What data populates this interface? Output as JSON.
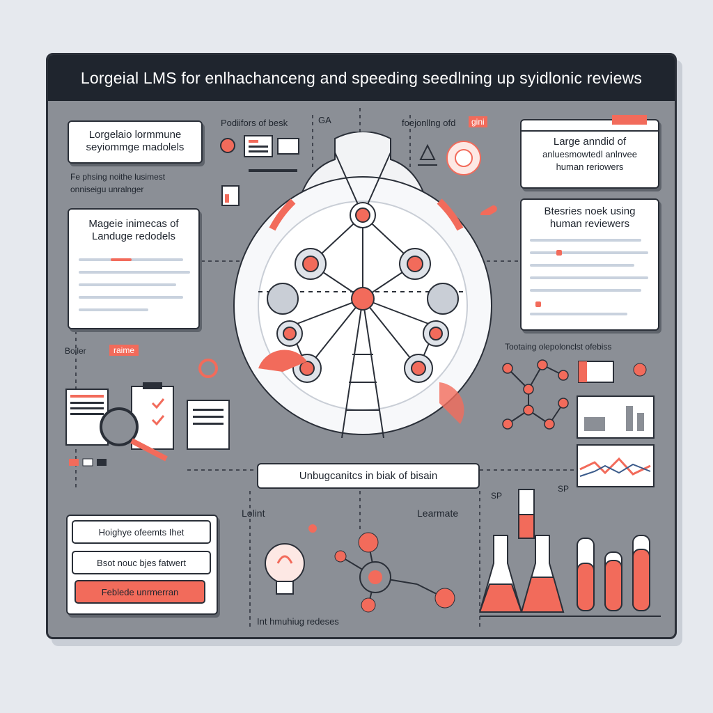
{
  "title": "Lorgeial LMS  for enlhachanceng and speeding seedlning up syidlonic reviews",
  "cards": {
    "top_left": {
      "line1": "Lorgelaio lormmune",
      "line2": "seyiommge madolels"
    },
    "middle_left": {
      "line1": "Mageie inimecas of",
      "line2": "Landuge redodels"
    },
    "top_right": {
      "line1": "Large anndid of",
      "line2": "anluesmowtedl anlnvee",
      "line3": "human reriowers"
    },
    "middle_right": {
      "line1": "Btesries noek using",
      "line2": "human reviewers"
    }
  },
  "labels": {
    "top_center_left": "Podiifors of besk",
    "top_center_ga": "GA",
    "top_center_right": "foejonllng ofd",
    "top_center_right_tag": "gini",
    "left_note_line1": "Fe phsing noithe lusimest",
    "left_note_line2": "onniseigu unralnger",
    "left_bottom_tag": "Boiler",
    "left_bottom_coral": "raime",
    "right_mid_note": "Tootaing olepolonclst ofebiss",
    "center_banner": "Unbugcanitcs in biak of bisain",
    "bottom_left_label": "Lolint",
    "bottom_center_label": "Learmate",
    "bottom_caption": "Int hmuhiug redeses",
    "right_sp": "SP",
    "right_sp2": "SP"
  },
  "stack_buttons": [
    "Hoighye ofeemts Ihet",
    "Bsot nouc bjes fatwert",
    "Feblede unrmerran"
  ],
  "colors": {
    "accent": "#f26b5b",
    "dark": "#1f252e",
    "board": "#8b8f96",
    "light": "#ffffff"
  }
}
